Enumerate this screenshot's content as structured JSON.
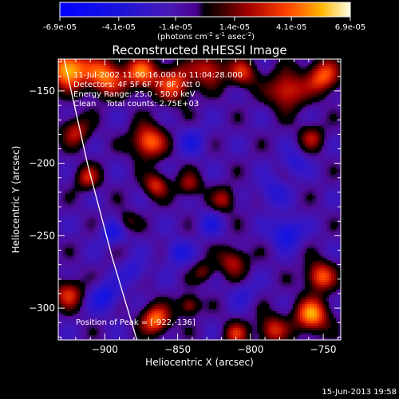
{
  "colorbar": {
    "ticks": [
      "-6.9e-05",
      "-4.1e-05",
      "-1.4e-05",
      "1.4e-05",
      "4.1e-05",
      "6.9e-05"
    ],
    "tick_values": [
      -6.9e-05,
      -4.1e-05,
      -1.4e-05,
      1.4e-05,
      4.1e-05,
      6.9e-05
    ],
    "range": [
      -6.9e-05,
      6.9e-05
    ]
  },
  "units": {
    "open": "(photons cm",
    "sup1": "-2",
    "mid": " s",
    "sup2": "-1",
    "mid2": " asec",
    "sup3": "-2",
    "close": ")"
  },
  "title": "Reconstructed RHESSI Image",
  "info": {
    "line1": "11-Jul-2002 11:00:16.000 to 11:04:28.000",
    "line2": "Detectors: 4F 5F 6F 7F 8F, Att 0",
    "line3": "Energy Range: 25.0 - 50.0 keV",
    "line4": "Clean    Total counts: 2.75E+03"
  },
  "peak_label": "Position of Peak = [-922,-136]",
  "date_stamp": "15-Jun-2013 19:58",
  "chart_data": {
    "type": "heatmap",
    "title": "Reconstructed RHESSI Image",
    "xlabel": "Heliocentric X (arcsec)",
    "ylabel": "Heliocentric Y (arcsec)",
    "xlim": [
      -932,
      -738
    ],
    "ylim": [
      -322,
      -128
    ],
    "x_ticks": [
      -900,
      -850,
      -800,
      -750
    ],
    "y_ticks": [
      -150,
      -200,
      -250,
      -300
    ],
    "x_tick_labels": [
      "−900",
      "−850",
      "−800",
      "−750"
    ],
    "y_tick_labels": [
      "−150",
      "−200",
      "−250",
      "−300"
    ],
    "blobs": [
      {
        "x": -925,
        "y": -135,
        "sigma": 9,
        "amp": 7.0
      },
      {
        "x": -900,
        "y": -140,
        "sigma": 9,
        "amp": 5.5
      },
      {
        "x": -875,
        "y": -138,
        "sigma": 8,
        "amp": 5.0
      },
      {
        "x": -852,
        "y": -145,
        "sigma": 9,
        "amp": 4.5
      },
      {
        "x": -828,
        "y": -135,
        "sigma": 8,
        "amp": 4.0
      },
      {
        "x": -805,
        "y": -138,
        "sigma": 7,
        "amp": 3.8
      },
      {
        "x": -775,
        "y": -150,
        "sigma": 9,
        "amp": 4.5
      },
      {
        "x": -750,
        "y": -140,
        "sigma": 8,
        "amp": 5.0
      },
      {
        "x": -758,
        "y": -182,
        "sigma": 6,
        "amp": 3.0
      },
      {
        "x": -920,
        "y": -178,
        "sigma": 7,
        "amp": 3.5
      },
      {
        "x": -870,
        "y": -185,
        "sigma": 8,
        "amp": 5.5
      },
      {
        "x": -912,
        "y": -210,
        "sigma": 6,
        "amp": 3.5
      },
      {
        "x": -865,
        "y": -215,
        "sigma": 6,
        "amp": 4.0
      },
      {
        "x": -842,
        "y": -215,
        "sigma": 6,
        "amp": 3.0
      },
      {
        "x": -818,
        "y": -225,
        "sigma": 6,
        "amp": 3.0
      },
      {
        "x": -885,
        "y": -240,
        "sigma": 5,
        "amp": 2.0
      },
      {
        "x": -812,
        "y": -268,
        "sigma": 7,
        "amp": 3.5
      },
      {
        "x": -832,
        "y": -275,
        "sigma": 5,
        "amp": 2.5
      },
      {
        "x": -925,
        "y": -290,
        "sigma": 7,
        "amp": 4.0
      },
      {
        "x": -752,
        "y": -278,
        "sigma": 7,
        "amp": 5.0
      },
      {
        "x": -865,
        "y": -308,
        "sigma": 7,
        "amp": 5.5
      },
      {
        "x": -842,
        "y": -298,
        "sigma": 5,
        "amp": 3.5
      },
      {
        "x": -758,
        "y": -305,
        "sigma": 8,
        "amp": 6.0
      },
      {
        "x": -785,
        "y": -315,
        "sigma": 7,
        "amp": 4.0
      },
      {
        "x": -810,
        "y": -318,
        "sigma": 6,
        "amp": 3.5
      },
      {
        "x": -895,
        "y": -248,
        "sigma": 6,
        "amp": -2.5
      },
      {
        "x": -850,
        "y": -262,
        "sigma": 6,
        "amp": -2.5
      },
      {
        "x": -775,
        "y": -248,
        "sigma": 7,
        "amp": -3.5
      },
      {
        "x": -785,
        "y": -220,
        "sigma": 7,
        "amp": -2.0
      },
      {
        "x": -828,
        "y": -242,
        "sigma": 6,
        "amp": -2.0
      },
      {
        "x": -900,
        "y": -292,
        "sigma": 7,
        "amp": -3.0
      },
      {
        "x": -880,
        "y": -275,
        "sigma": 6,
        "amp": -2.0
      },
      {
        "x": -770,
        "y": -200,
        "sigma": 6,
        "amp": -2.0
      },
      {
        "x": -840,
        "y": -185,
        "sigma": 7,
        "amp": -2.0
      },
      {
        "x": -805,
        "y": -290,
        "sigma": 6,
        "amp": -1.5
      }
    ],
    "limb": [
      [
        -928,
        -128
      ],
      [
        -912,
        -200
      ],
      [
        -895,
        -265
      ],
      [
        -878,
        -322
      ]
    ],
    "peak": {
      "x": -922,
      "y": -136
    }
  },
  "colors": {
    "background": "#000000",
    "axes": "#ffffff"
  }
}
